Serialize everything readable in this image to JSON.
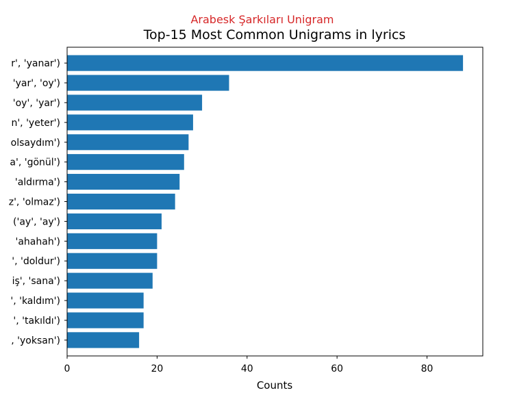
{
  "colors": {
    "bar": "#1f77b4",
    "super_title": "#d62728",
    "axis": "#000000"
  },
  "chart_data": {
    "type": "bar",
    "orientation": "horizontal",
    "super_title": "Arabesk Şarkıları Unigram",
    "title": "Top-15 Most Common Unigrams in lyrics",
    "xlabel": "Counts",
    "ylabel": "",
    "xlim": [
      0,
      92.4
    ],
    "x_ticks": [
      0,
      20,
      40,
      60,
      80
    ],
    "grid": false,
    "categories": [
      "r', 'yanar')",
      "'yar', 'oy')",
      "'oy', 'yar')",
      "n', 'yeter')",
      "olsaydım')",
      "a', 'gönül')",
      "'aldırma')",
      "z', 'olmaz')",
      "('ay', 'ay')",
      "'ahahah')",
      "', 'doldur')",
      "iş', 'sana')",
      "', 'kaldım')",
      "', 'takıldı')",
      ", 'yoksan')"
    ],
    "values": [
      88,
      36,
      30,
      28,
      27,
      26,
      25,
      24,
      21,
      20,
      20,
      19,
      17,
      17,
      16
    ]
  }
}
